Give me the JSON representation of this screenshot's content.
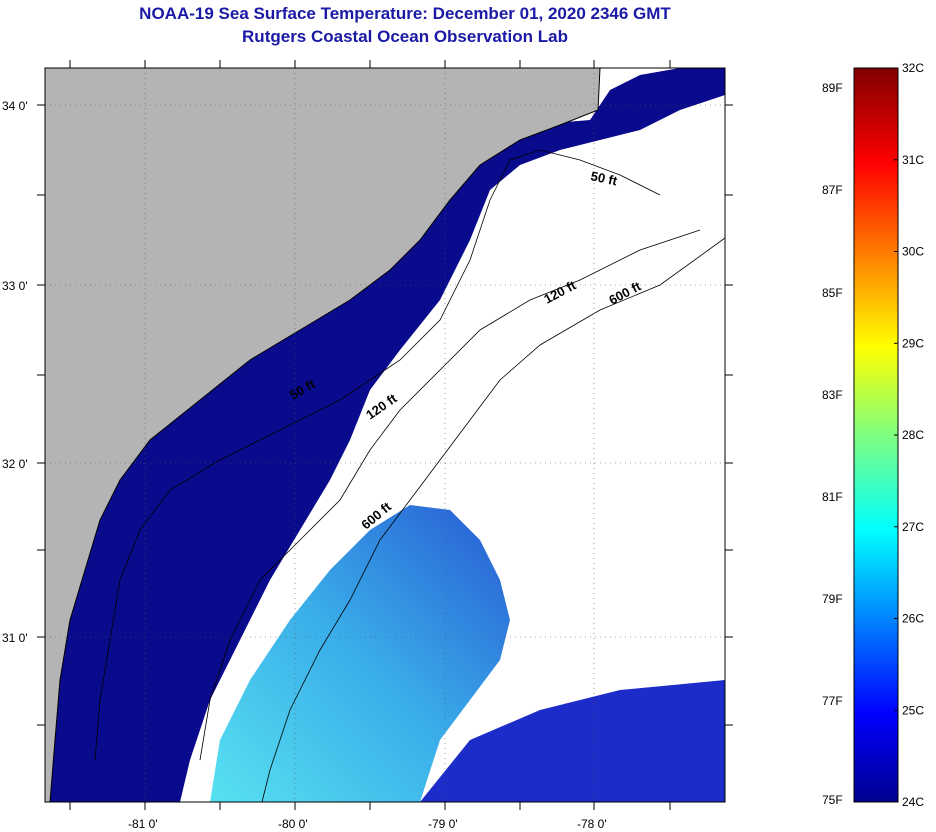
{
  "title": "NOAA-19 Sea Surface Temperature:  December 01, 2020 2346 GMT",
  "subtitle": "Rutgers Coastal Ocean Observation Lab",
  "lat_labels": [
    "34 0'",
    "33 0'",
    "32 0'",
    "31 0'"
  ],
  "lon_labels": [
    "-81 0'",
    "-80 0'",
    "-79 0'",
    "-78 0'"
  ],
  "contours": [
    "50 ft",
    "120 ft",
    "600 ft",
    "50 ft",
    "120 ft",
    "600 ft"
  ],
  "colorbar": {
    "celsius": [
      "32C",
      "31C",
      "30C",
      "29C",
      "28C",
      "27C",
      "26C",
      "25C",
      "24C"
    ],
    "fahrenheit": [
      "89F",
      "87F",
      "85F",
      "83F",
      "81F",
      "79F",
      "77F",
      "75F"
    ]
  },
  "colors": {
    "land": "#b4b4b4",
    "cloud": "#ffffff",
    "cold_water": "#0a0a8c",
    "warm_water": "#3fd6e6"
  }
}
